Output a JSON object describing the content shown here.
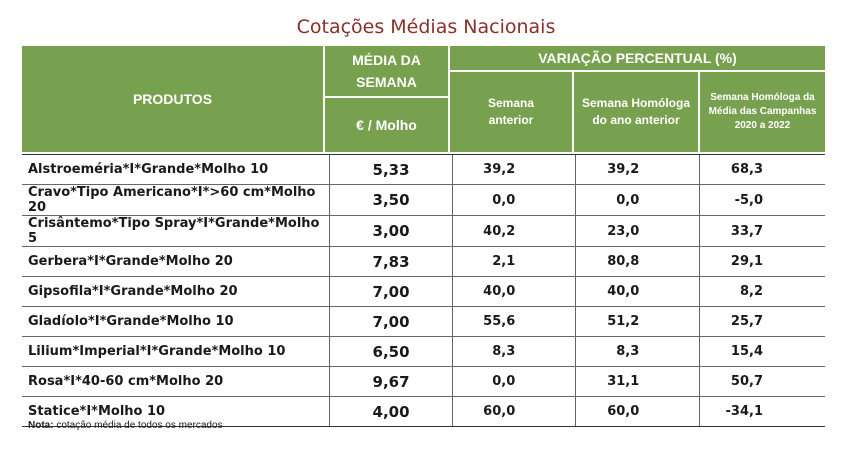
{
  "title": "Cotações Médias Nacionais",
  "header": {
    "produtos": "PRODUTOS",
    "media_line1": "MÉDIA DA",
    "media_line2": "SEMANA",
    "unit": "€ / Molho",
    "variacao": "VARIAÇÃO PERCENTUAL (%)",
    "col_semana_anterior": [
      "Semana",
      "anterior"
    ],
    "col_homologa_ano": [
      "Semana Homóloga",
      "do ano anterior"
    ],
    "col_homologa_campanhas": [
      "Semana Homóloga da",
      "Média das Campanhas",
      "2020 a 2022"
    ]
  },
  "rows": [
    {
      "produto": "Alstroeméria*I*Grande*Molho 10",
      "media": "5,33",
      "v1": "39,2",
      "v2": "39,2",
      "v3": "68,3"
    },
    {
      "produto": "Cravo*Tipo Americano*I*>60 cm*Molho 20",
      "media": "3,50",
      "v1": "0,0",
      "v2": "0,0",
      "v3": "-5,0"
    },
    {
      "produto": "Crisântemo*Tipo Spray*I*Grande*Molho 5",
      "media": "3,00",
      "v1": "40,2",
      "v2": "23,0",
      "v3": "33,7"
    },
    {
      "produto": "Gerbera*I*Grande*Molho 20",
      "media": "7,83",
      "v1": "2,1",
      "v2": "80,8",
      "v3": "29,1"
    },
    {
      "produto": "Gipsofila*I*Grande*Molho 20",
      "media": "7,00",
      "v1": "40,0",
      "v2": "40,0",
      "v3": "8,2"
    },
    {
      "produto": "Gladíolo*I*Grande*Molho 10",
      "media": "7,00",
      "v1": "55,6",
      "v2": "51,2",
      "v3": "25,7"
    },
    {
      "produto": "Lilium*Imperial*I*Grande*Molho 10",
      "media": "6,50",
      "v1": "8,3",
      "v2": "8,3",
      "v3": "15,4"
    },
    {
      "produto": "Rosa*I*40-60 cm*Molho 20",
      "media": "9,67",
      "v1": "0,0",
      "v2": "31,1",
      "v3": "50,7"
    },
    {
      "produto": "Statice*I*Molho 10",
      "media": "4,00",
      "v1": "60,0",
      "v2": "60,0",
      "v3": "-34,1"
    }
  ],
  "note_label": "Nota:",
  "note_text": " cotação média de todos os mercados",
  "colors": {
    "header_green": "#77a04f",
    "title_red": "#8b2e2e"
  }
}
